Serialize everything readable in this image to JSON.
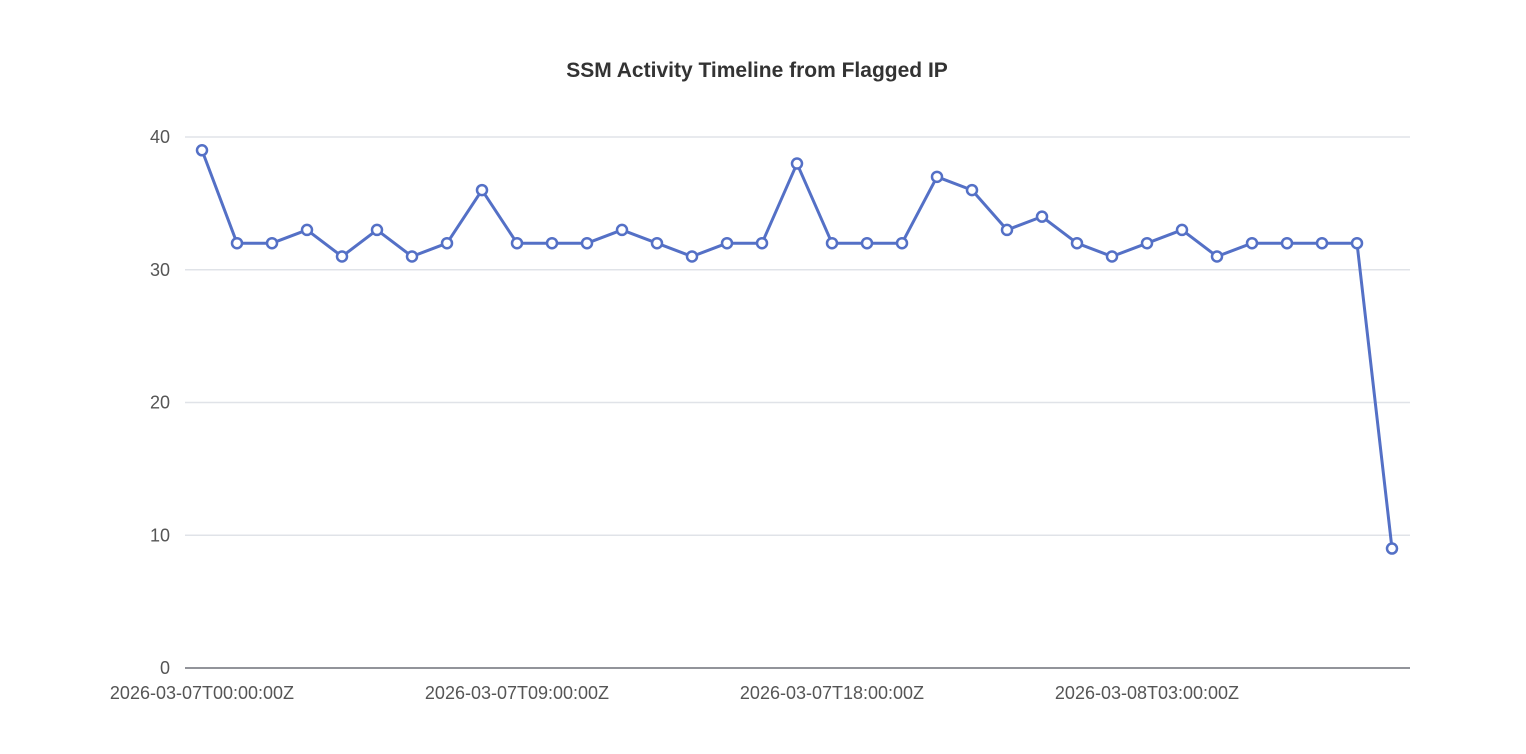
{
  "chart_data": {
    "type": "line",
    "title": "SSM Activity Timeline from Flagged IP",
    "xlabel": "",
    "ylabel": "",
    "ylim": [
      0,
      40
    ],
    "yticks": [
      0,
      10,
      20,
      30,
      40
    ],
    "grid": true,
    "x": [
      "2026-03-07T00:00:00Z",
      "2026-03-07T01:00:00Z",
      "2026-03-07T02:00:00Z",
      "2026-03-07T03:00:00Z",
      "2026-03-07T04:00:00Z",
      "2026-03-07T05:00:00Z",
      "2026-03-07T06:00:00Z",
      "2026-03-07T07:00:00Z",
      "2026-03-07T08:00:00Z",
      "2026-03-07T09:00:00Z",
      "2026-03-07T10:00:00Z",
      "2026-03-07T11:00:00Z",
      "2026-03-07T12:00:00Z",
      "2026-03-07T13:00:00Z",
      "2026-03-07T14:00:00Z",
      "2026-03-07T15:00:00Z",
      "2026-03-07T16:00:00Z",
      "2026-03-07T17:00:00Z",
      "2026-03-07T18:00:00Z",
      "2026-03-07T19:00:00Z",
      "2026-03-07T20:00:00Z",
      "2026-03-07T21:00:00Z",
      "2026-03-07T22:00:00Z",
      "2026-03-07T23:00:00Z",
      "2026-03-08T00:00:00Z",
      "2026-03-08T01:00:00Z",
      "2026-03-08T02:00:00Z",
      "2026-03-08T03:00:00Z",
      "2026-03-08T04:00:00Z",
      "2026-03-08T05:00:00Z",
      "2026-03-08T06:00:00Z",
      "2026-03-08T07:00:00Z",
      "2026-03-08T08:00:00Z",
      "2026-03-08T09:00:00Z",
      "2026-03-08T10:00:00Z"
    ],
    "xtick_labels": [
      "2026-03-07T00:00:00Z",
      "2026-03-07T09:00:00Z",
      "2026-03-07T18:00:00Z",
      "2026-03-08T03:00:00Z"
    ],
    "series": [
      {
        "name": "SSM activity",
        "color": "#5470c6",
        "values": [
          39,
          32,
          32,
          33,
          31,
          33,
          31,
          32,
          36,
          32,
          32,
          32,
          33,
          32,
          31,
          32,
          32,
          38,
          32,
          32,
          32,
          37,
          36,
          33,
          34,
          32,
          31,
          32,
          33,
          31,
          32,
          32,
          32,
          32,
          9
        ]
      }
    ]
  }
}
